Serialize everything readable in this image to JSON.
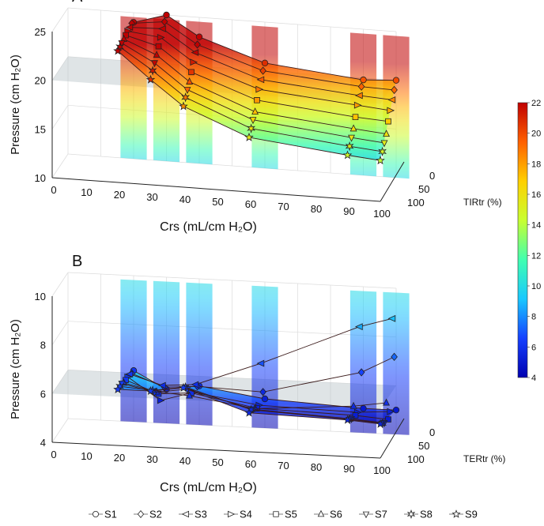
{
  "chart_data": [
    {
      "panel": "A",
      "type": "3d-line",
      "ylabel": "Pressure (cm H₂O)",
      "xlabel": "Crs (mL/cm H₂O)",
      "zlabel": "TIRtr (%)",
      "xlim": [
        0,
        100
      ],
      "ylim": [
        10,
        25
      ],
      "zlim": [
        0,
        100
      ],
      "x_ticks": [
        "0",
        "10",
        "20",
        "30",
        "40",
        "50",
        "60",
        "70",
        "80",
        "90",
        "100"
      ],
      "y_ticks": [
        "10",
        "15",
        "20",
        "25"
      ],
      "z_ticks": [
        "0",
        "50",
        "100"
      ],
      "plane_level": 20,
      "x": [
        20,
        30,
        40,
        60,
        90,
        100
      ],
      "series": [
        {
          "name": "S1",
          "marker": "circle",
          "z": 0,
          "values": [
            24.0,
            25.0,
            23.0,
            20.8,
            19.8,
            20.0
          ]
        },
        {
          "name": "S2",
          "marker": "diamond",
          "z": 12,
          "values": [
            24.2,
            24.6,
            22.5,
            20.3,
            19.4,
            19.3
          ]
        },
        {
          "name": "S3",
          "marker": "triangle-left",
          "z": 25,
          "values": [
            24.1,
            24.2,
            22.0,
            19.7,
            18.8,
            18.6
          ]
        },
        {
          "name": "S4",
          "marker": "triangle-right",
          "z": 37,
          "values": [
            24.0,
            23.6,
            21.3,
            19.0,
            18.1,
            17.8
          ]
        },
        {
          "name": "S5",
          "marker": "square",
          "z": 50,
          "values": [
            23.9,
            23.0,
            20.6,
            18.2,
            17.2,
            17.0
          ]
        },
        {
          "name": "S6",
          "marker": "triangle-up",
          "z": 62,
          "values": [
            23.8,
            22.4,
            19.9,
            17.3,
            16.3,
            16.0
          ]
        },
        {
          "name": "S7",
          "marker": "triangle-down",
          "z": 75,
          "values": [
            23.7,
            21.9,
            19.4,
            16.8,
            15.7,
            15.4
          ]
        },
        {
          "name": "S8",
          "marker": "star6",
          "z": 87,
          "values": [
            23.6,
            21.4,
            18.9,
            16.2,
            15.1,
            14.8
          ]
        },
        {
          "name": "S9",
          "marker": "star5",
          "z": 100,
          "values": [
            23.5,
            20.8,
            18.3,
            15.6,
            14.5,
            14.2
          ]
        }
      ]
    },
    {
      "panel": "B",
      "type": "3d-line",
      "ylabel": "Pressure (cm H₂O)",
      "xlabel": "Crs (mL/cm H₂O)",
      "zlabel": "TERtr (%)",
      "xlim": [
        0,
        100
      ],
      "ylim": [
        4,
        10
      ],
      "zlim": [
        0,
        100
      ],
      "x_ticks": [
        "0",
        "10",
        "20",
        "30",
        "40",
        "50",
        "60",
        "70",
        "80",
        "90",
        "100"
      ],
      "y_ticks": [
        "4",
        "6",
        "8",
        "10"
      ],
      "z_ticks": [
        "0",
        "50",
        "100"
      ],
      "plane_level": 6,
      "x": [
        20,
        30,
        40,
        60,
        90,
        100
      ],
      "series": [
        {
          "name": "S1",
          "marker": "circle",
          "z": 0,
          "values": [
            6.1,
            5.4,
            5.6,
            5.2,
            5.0,
            5.0
          ]
        },
        {
          "name": "S2",
          "marker": "diamond",
          "z": 12,
          "values": [
            6.1,
            5.6,
            5.7,
            5.6,
            6.6,
            7.3
          ]
        },
        {
          "name": "S3",
          "marker": "triangle-left",
          "z": 25,
          "values": [
            6.2,
            5.8,
            5.9,
            6.9,
            8.6,
            9.0
          ]
        },
        {
          "name": "S4",
          "marker": "triangle-right",
          "z": 37,
          "values": [
            6.2,
            5.3,
            5.7,
            5.3,
            5.2,
            5.3
          ]
        },
        {
          "name": "S5",
          "marker": "square",
          "z": 50,
          "values": [
            6.2,
            5.7,
            5.8,
            5.3,
            5.2,
            5.1
          ]
        },
        {
          "name": "S6",
          "marker": "triangle-up",
          "z": 62,
          "values": [
            6.2,
            5.9,
            5.8,
            5.4,
            5.7,
            5.9
          ]
        },
        {
          "name": "S7",
          "marker": "triangle-down",
          "z": 75,
          "values": [
            6.3,
            6.0,
            6.2,
            5.5,
            5.3,
            5.2
          ]
        },
        {
          "name": "S8",
          "marker": "star6",
          "z": 87,
          "values": [
            6.3,
            6.2,
            6.4,
            5.6,
            5.4,
            5.3
          ]
        },
        {
          "name": "S9",
          "marker": "star5",
          "z": 100,
          "values": [
            6.3,
            6.3,
            6.5,
            5.6,
            5.5,
            5.4
          ]
        }
      ]
    }
  ],
  "colorbar": {
    "min": 4,
    "max": 22,
    "ticks": [
      "4",
      "6",
      "8",
      "10",
      "12",
      "14",
      "16",
      "18",
      "20",
      "22"
    ],
    "colormap": "jet",
    "stops": [
      "#0000b0",
      "#1540ff",
      "#18c8ff",
      "#40ffb0",
      "#c8ff30",
      "#ffd000",
      "#ff6000",
      "#c00000"
    ]
  },
  "panel_labels": [
    "A",
    "B"
  ],
  "legend": [
    "S1",
    "S2",
    "S3",
    "S4",
    "S5",
    "S6",
    "S7",
    "S8",
    "S9"
  ],
  "legend_placement": "bottom"
}
